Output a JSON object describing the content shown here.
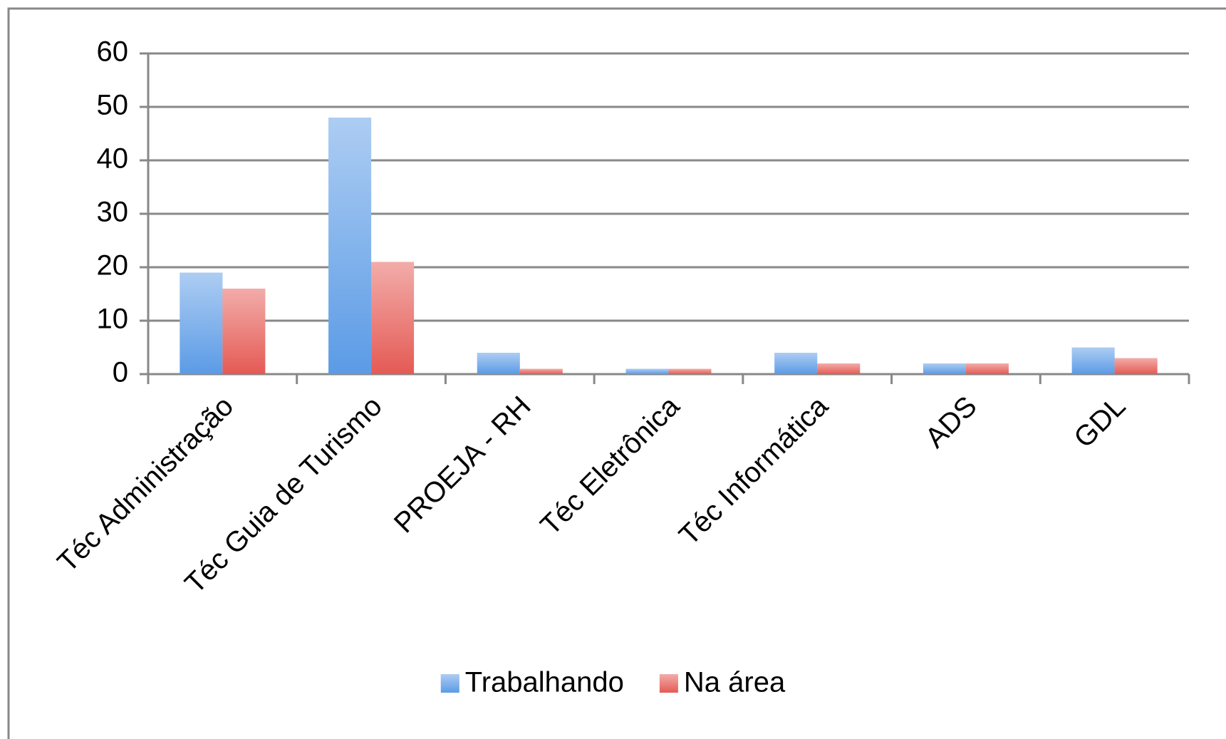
{
  "chart_data": {
    "type": "bar",
    "categories": [
      "Téc Administração",
      "Téc Guia de Turismo",
      "PROEJA - RH",
      "Téc Eletrônica",
      "Téc Informática",
      "ADS",
      "GDL"
    ],
    "series": [
      {
        "name": "Trabalhando",
        "color": "#5b9be6",
        "values": [
          19,
          48,
          4,
          1,
          4,
          2,
          5
        ]
      },
      {
        "name": "Na área",
        "color": "#e55a54",
        "values": [
          16,
          21,
          1,
          1,
          2,
          2,
          3
        ]
      }
    ],
    "ylim": [
      0,
      60
    ],
    "yticks": [
      0,
      10,
      20,
      30,
      40,
      50,
      60
    ],
    "grid": true,
    "legend": "bottom"
  }
}
